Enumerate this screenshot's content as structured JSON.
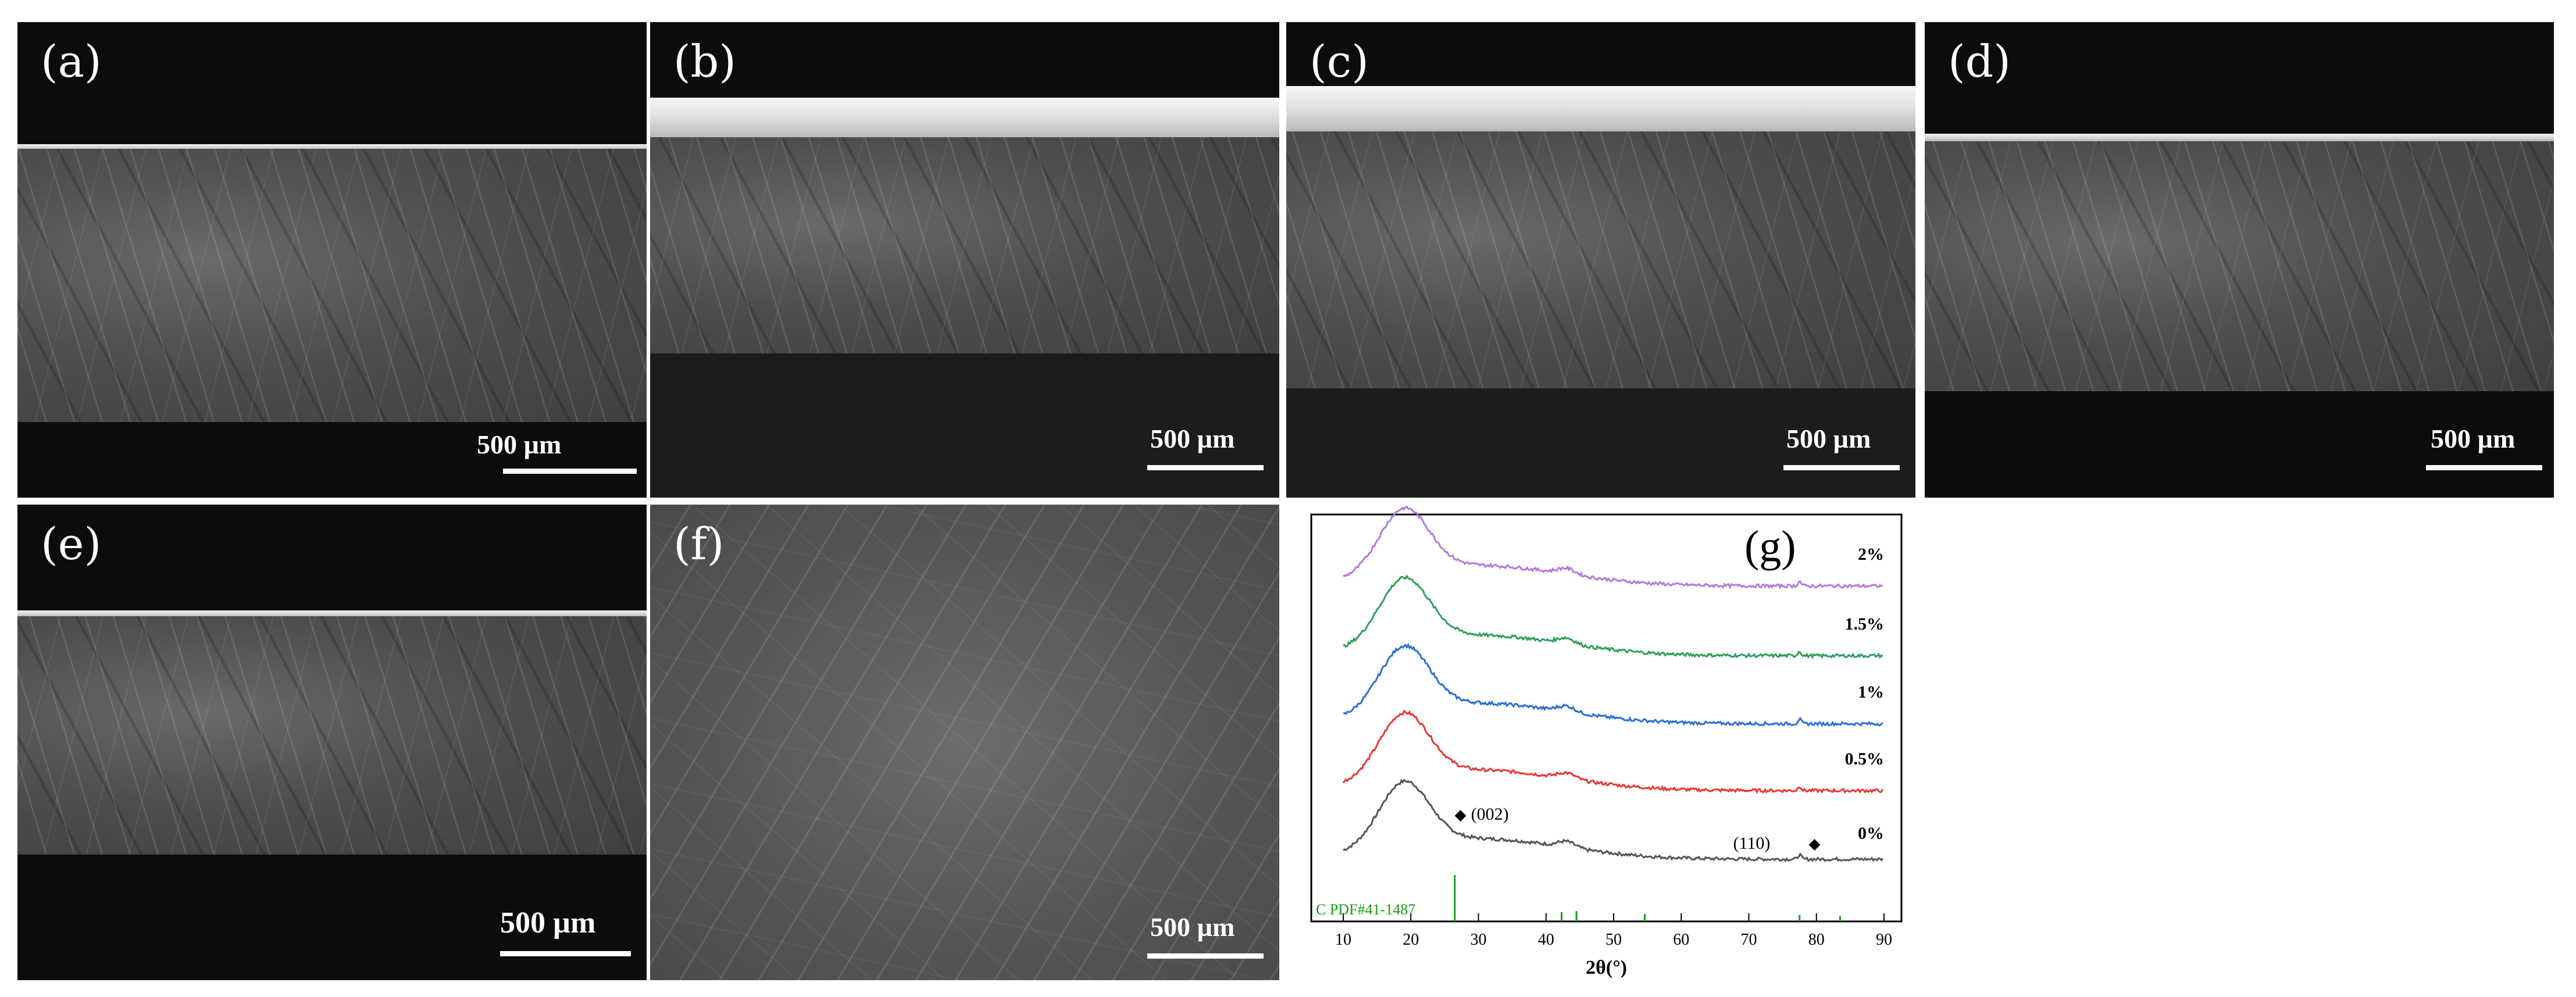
{
  "figure": {
    "panels": [
      {
        "id": "a",
        "label": "(a)",
        "scale_label": "500 µm"
      },
      {
        "id": "b",
        "label": "(b)",
        "scale_label": "500 µm"
      },
      {
        "id": "c",
        "label": "(c)",
        "scale_label": "500 µm"
      },
      {
        "id": "d",
        "label": "(d)",
        "scale_label": "500 µm"
      },
      {
        "id": "e",
        "label": "(e)",
        "scale_label": "500 µm"
      },
      {
        "id": "f",
        "label": "(f)",
        "scale_label": "500 µm"
      }
    ]
  },
  "chart_data": {
    "type": "line",
    "panel_label": "(g)",
    "xlabel": "2θ(°)",
    "ylabel": "",
    "xlim": [
      10,
      90
    ],
    "xticks": [
      10,
      20,
      30,
      40,
      50,
      60,
      70,
      80,
      90
    ],
    "grid": false,
    "legend": "none",
    "series": [
      {
        "name": "0%",
        "color": "#555555"
      },
      {
        "name": "0.5%",
        "color": "#e53935"
      },
      {
        "name": "1%",
        "color": "#2a6fd6"
      },
      {
        "name": "1.5%",
        "color": "#2e9e5b"
      },
      {
        "name": "2%",
        "color": "#b57ad8"
      }
    ],
    "peaks": {
      "broad_peak_2theta": 19,
      "secondary_peak_2theta": 43,
      "small_peak_2theta": 77.5
    },
    "annotations": [
      {
        "text": "(002)",
        "x": 27,
        "marker": "◆"
      },
      {
        "text": "(110)",
        "x": 78,
        "marker": "◆"
      }
    ],
    "reference": {
      "label": "C PDF#41-1487",
      "color": "#1a9a1a",
      "lines": [
        {
          "x": 26.5,
          "height": 1.0
        },
        {
          "x": 42.3,
          "height": 0.2
        },
        {
          "x": 44.5,
          "height": 0.22
        },
        {
          "x": 54.6,
          "height": 0.16
        },
        {
          "x": 77.5,
          "height": 0.14
        },
        {
          "x": 83.5,
          "height": 0.12
        }
      ]
    }
  }
}
